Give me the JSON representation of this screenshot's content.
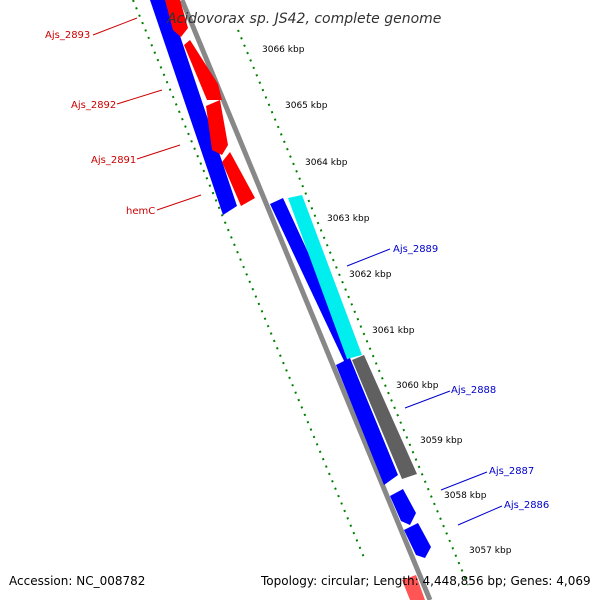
{
  "title": "Acidovorax sp. JS42, complete genome",
  "accession": "Accession: NC_008782",
  "summary": "Topology: circular; Length: 4,448,856 bp; Genes: 4,069",
  "colors": {
    "forward_label": "#cc0000",
    "reverse_label": "#0000cc",
    "tick": "#008000",
    "backbone": "#888888"
  },
  "kbp_ticks": [
    "3066 kbp",
    "3065 kbp",
    "3064 kbp",
    "3063 kbp",
    "3062 kbp",
    "3061 kbp",
    "3060 kbp",
    "3059 kbp",
    "3058 kbp",
    "3057 kbp"
  ],
  "genes_left": [
    "Ajs_2893",
    "Ajs_2892",
    "Ajs_2891",
    "hemC"
  ],
  "genes_right": [
    "Ajs_2889",
    "Ajs_2888",
    "Ajs_2887",
    "Ajs_2886"
  ]
}
